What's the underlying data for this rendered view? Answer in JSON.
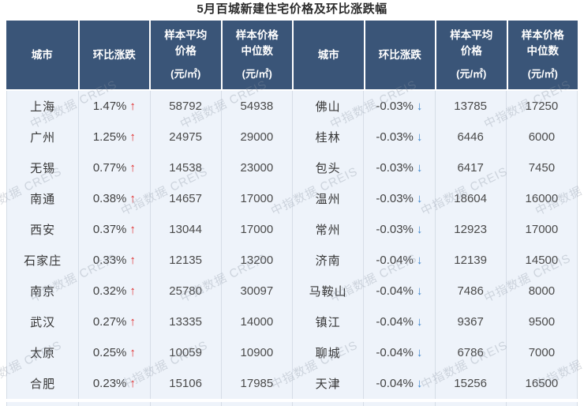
{
  "title": "5月百城新建住宅价格及环比涨跌幅",
  "watermark": {
    "text": "中指数据 CREIS"
  },
  "glyphs": {
    "up": "↑",
    "down": "↓"
  },
  "header": {
    "city": "城市",
    "change": "环比涨跌",
    "avg": [
      "样本平均",
      "价格"
    ],
    "median": [
      "样本价格",
      "中位数"
    ],
    "unit": "(元/㎡)"
  },
  "colors": {
    "header_bg": "#3a5578",
    "body_bg": "#eef3fa",
    "separator": "#d6dde7",
    "up_arrow": "#e02a2a",
    "down_arrow": "#3e86cc"
  },
  "chart_data": {
    "type": "table",
    "title": "5月百城新建住宅价格及环比涨跌幅",
    "columns": [
      "城市",
      "环比涨跌",
      "样本平均价格(元/㎡)",
      "样本价格中位数(元/㎡)",
      "城市",
      "环比涨跌",
      "样本平均价格(元/㎡)",
      "样本价格中位数(元/㎡)"
    ],
    "rows": [
      [
        "上海",
        "1.47%",
        58792,
        54938,
        "佛山",
        "-0.03%",
        13785,
        17250
      ],
      [
        "广州",
        "1.25%",
        24975,
        29000,
        "桂林",
        "-0.03%",
        6446,
        6000
      ],
      [
        "无锡",
        "0.77%",
        14538,
        23000,
        "包头",
        "-0.03%",
        6417,
        7450
      ],
      [
        "南通",
        "0.38%",
        14657,
        17000,
        "温州",
        "-0.03%",
        18604,
        16000
      ],
      [
        "西安",
        "0.37%",
        13044,
        17000,
        "常州",
        "-0.03%",
        12923,
        17000
      ],
      [
        "石家庄",
        "0.33%",
        12135,
        13200,
        "济南",
        "-0.04%",
        12139,
        14500
      ],
      [
        "南京",
        "0.32%",
        25780,
        30097,
        "马鞍山",
        "-0.04%",
        7486,
        8000
      ],
      [
        "武汉",
        "0.27%",
        13335,
        14000,
        "镇江",
        "-0.04%",
        9367,
        9500
      ],
      [
        "太原",
        "0.25%",
        10059,
        10900,
        "聊城",
        "-0.04%",
        6786,
        7000
      ],
      [
        "合肥",
        "0.23%",
        15106,
        17985,
        "天津",
        "-0.04%",
        15256,
        16500
      ]
    ]
  }
}
